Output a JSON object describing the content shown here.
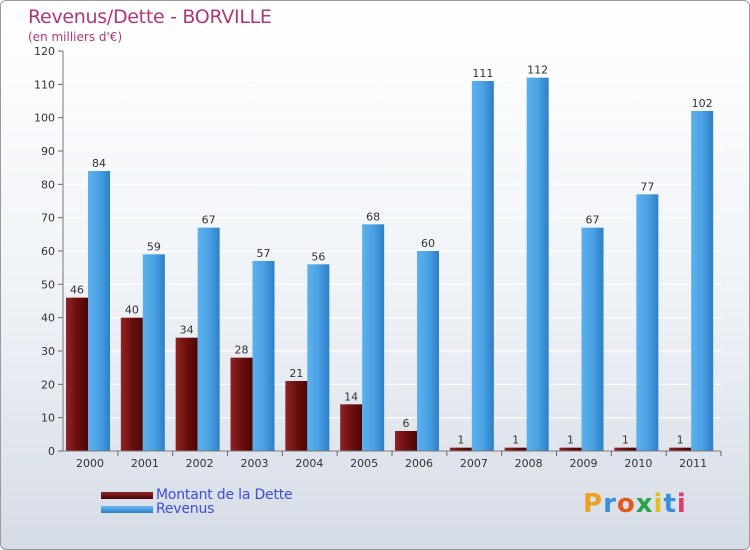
{
  "header": {
    "title": "Revenus/Dette - BORVILLE",
    "subtitle": "(en milliers d'€)"
  },
  "legend": {
    "debt_label": "Montant de la Dette",
    "revenue_label": "Revenus"
  },
  "logo": {
    "text": "Proxiti"
  },
  "colors": {
    "debt": "#7a1414",
    "revenue": "#3f9be0",
    "title": "#b0367a",
    "legend_text": "#3c4ed8"
  },
  "chart_data": {
    "type": "bar",
    "title": "Revenus/Dette - BORVILLE",
    "subtitle": "(en milliers d'€)",
    "categories": [
      "2000",
      "2001",
      "2002",
      "2003",
      "2004",
      "2005",
      "2006",
      "2007",
      "2008",
      "2009",
      "2010",
      "2011"
    ],
    "series": [
      {
        "name": "Montant de la Dette",
        "values": [
          46,
          40,
          34,
          28,
          21,
          14,
          6,
          1,
          1,
          1,
          1,
          1
        ]
      },
      {
        "name": "Revenus",
        "values": [
          84,
          59,
          67,
          57,
          56,
          68,
          60,
          111,
          112,
          67,
          77,
          102
        ]
      }
    ],
    "ylim": [
      0,
      120
    ],
    "yticks": [
      0,
      10,
      20,
      30,
      40,
      50,
      60,
      70,
      80,
      90,
      100,
      110,
      120
    ],
    "grid": true,
    "legend_position": "bottom-left"
  }
}
